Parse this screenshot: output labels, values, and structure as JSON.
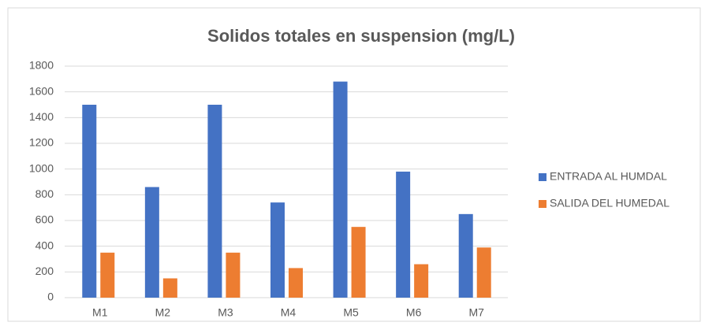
{
  "chart_data": {
    "type": "bar",
    "title": "Solidos totales en suspension (mg/L)",
    "categories": [
      "M1",
      "M2",
      "M3",
      "M4",
      "M5",
      "M6",
      "M7"
    ],
    "series": [
      {
        "name": "ENTRADA AL HUMDAL",
        "color": "#4472c4",
        "values": [
          1500,
          860,
          1500,
          740,
          1680,
          980,
          650
        ]
      },
      {
        "name": "SALIDA DEL HUMEDAL",
        "color": "#ed7d31",
        "values": [
          350,
          150,
          350,
          230,
          550,
          260,
          390
        ]
      }
    ],
    "ylim": [
      0,
      1800
    ],
    "yticks": [
      0,
      200,
      400,
      600,
      800,
      1000,
      1200,
      1400,
      1600,
      1800
    ],
    "grid": true,
    "legend": "right"
  }
}
